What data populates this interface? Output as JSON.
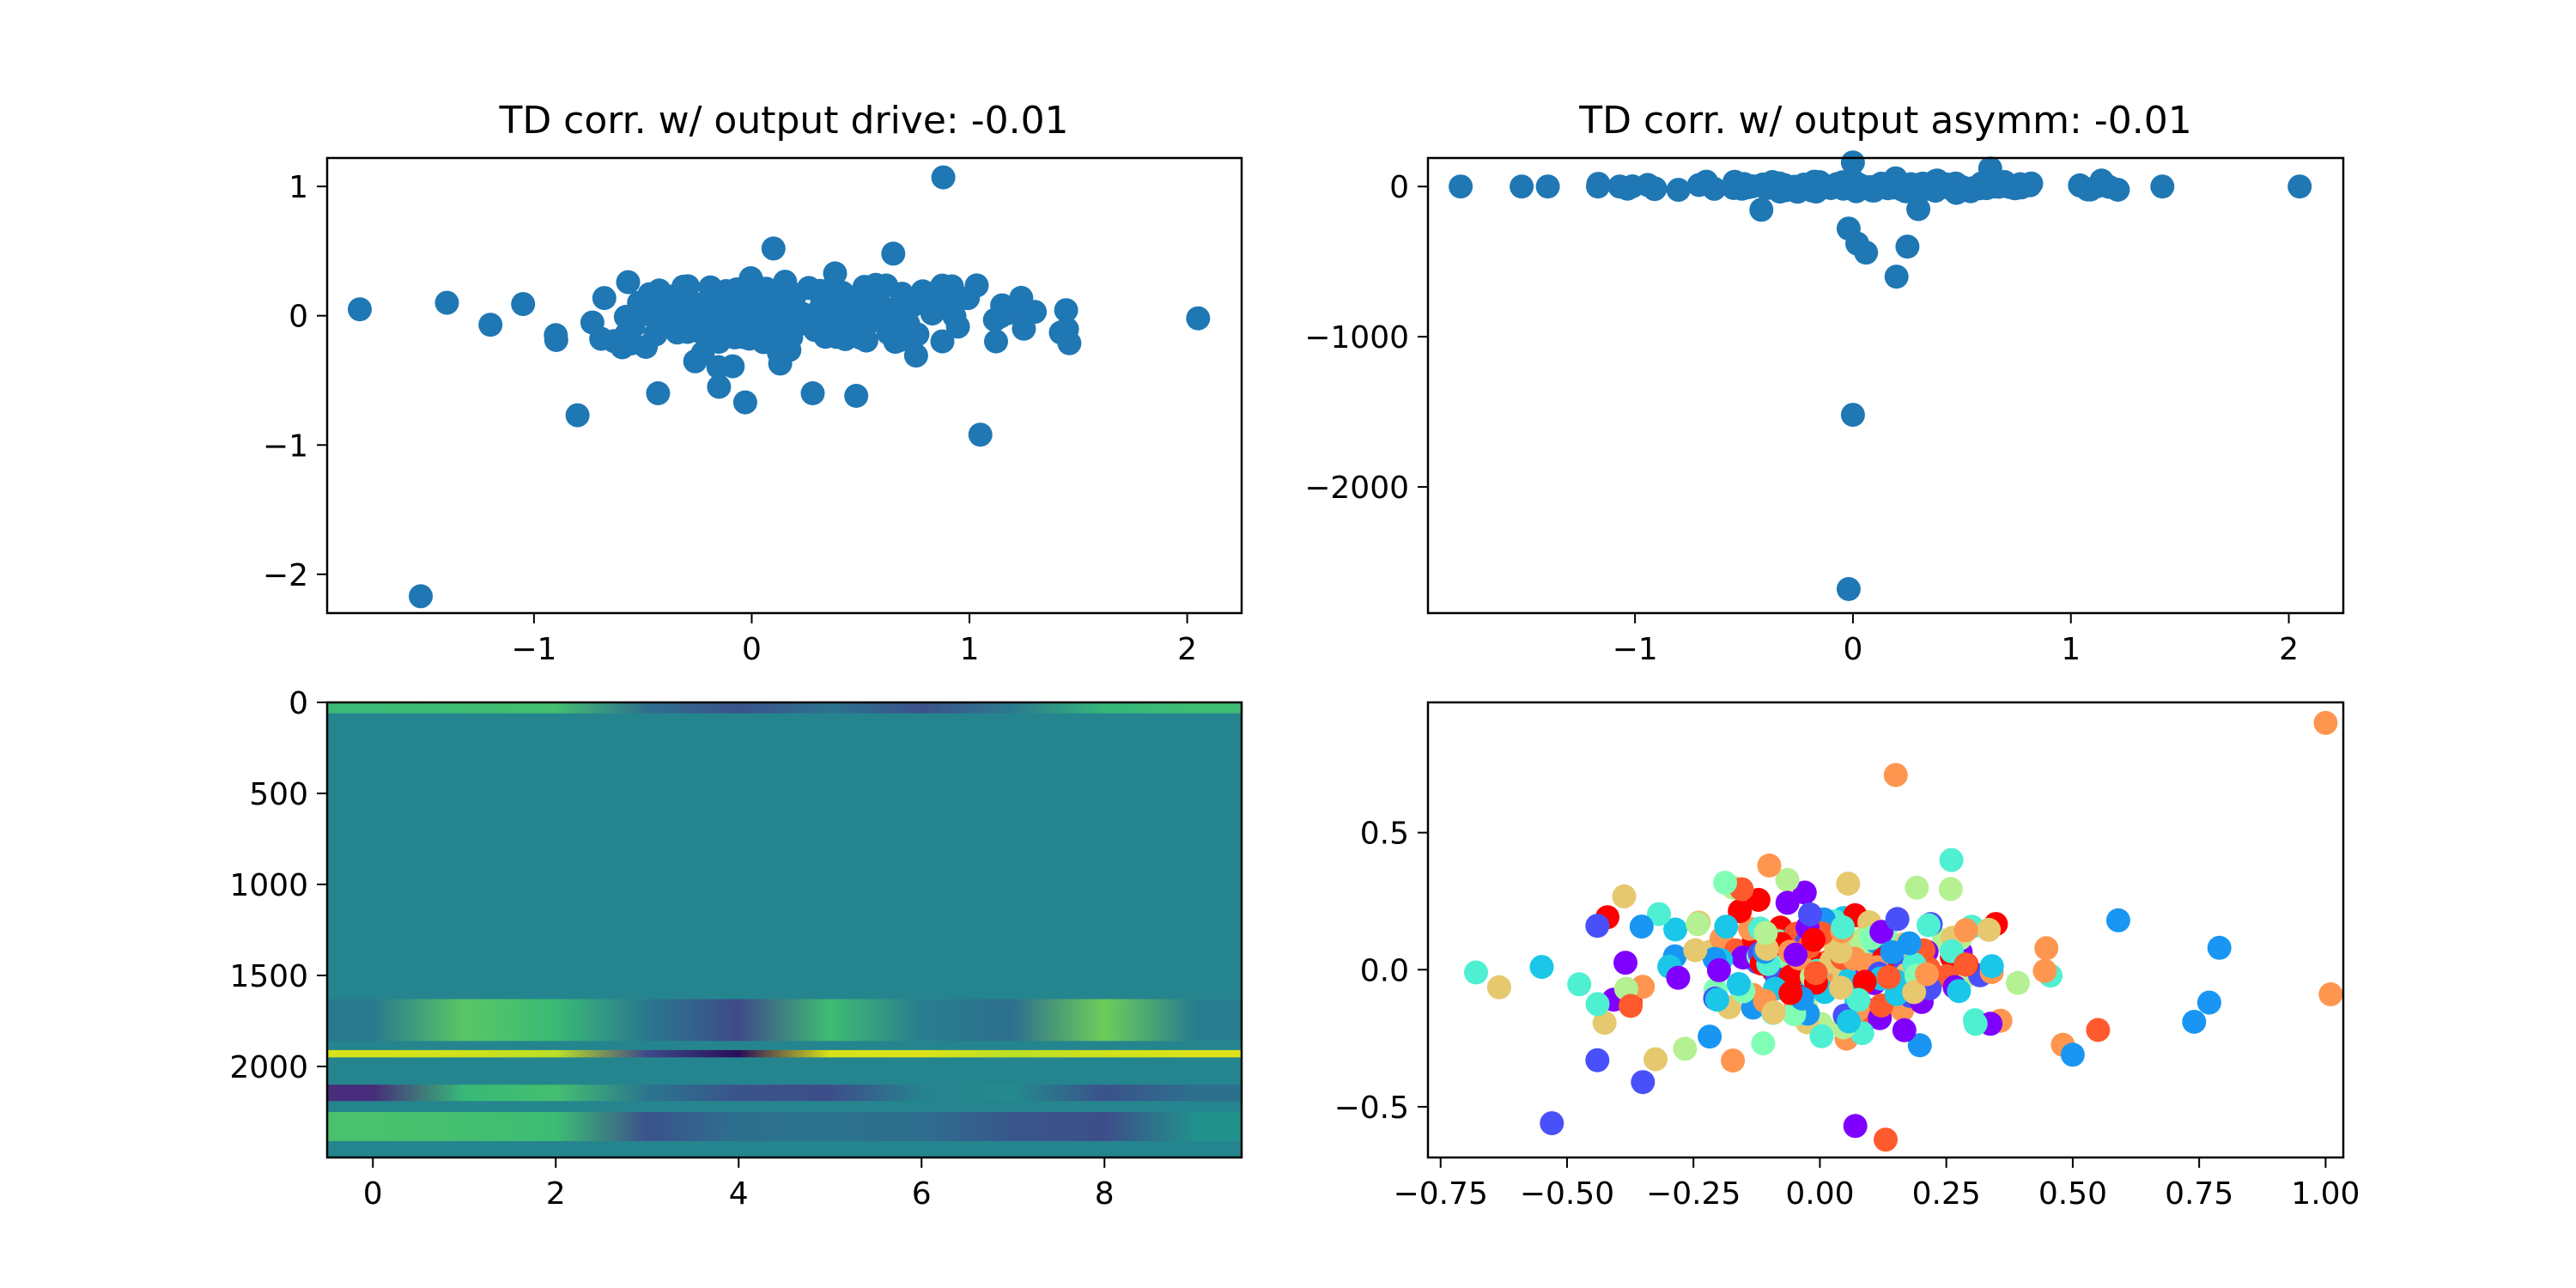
{
  "chart_data": [
    {
      "type": "scatter",
      "title": "TD corr. w/ output drive: -0.01",
      "xlim": [
        -1.95,
        2.25
      ],
      "ylim": [
        -2.3,
        1.22
      ],
      "xticks": [
        -1,
        0,
        1,
        2
      ],
      "yticks": [
        1,
        0,
        -1,
        -2
      ],
      "color": "#1f77b4",
      "outliers": [
        {
          "x": -1.8,
          "y": 0.05
        },
        {
          "x": -1.4,
          "y": 0.1
        },
        {
          "x": -1.2,
          "y": -0.07
        },
        {
          "x": -1.05,
          "y": 0.09
        },
        {
          "x": -0.9,
          "y": -0.15
        },
        {
          "x": -0.8,
          "y": -0.77
        },
        {
          "x": -1.52,
          "y": -2.17
        },
        {
          "x": 0.88,
          "y": 1.07
        },
        {
          "x": 0.65,
          "y": 0.48
        },
        {
          "x": 0.1,
          "y": 0.52
        },
        {
          "x": -0.43,
          "y": -0.6
        },
        {
          "x": -0.15,
          "y": -0.55
        },
        {
          "x": -0.03,
          "y": -0.67
        },
        {
          "x": 0.28,
          "y": -0.6
        },
        {
          "x": 0.48,
          "y": -0.62
        },
        {
          "x": 1.05,
          "y": -0.92
        },
        {
          "x": 1.25,
          "y": -0.1
        },
        {
          "x": 1.3,
          "y": 0.03
        },
        {
          "x": 1.42,
          "y": -0.13
        },
        {
          "x": 2.05,
          "y": -0.02
        },
        {
          "x": 1.15,
          "y": 0.08
        }
      ],
      "cluster": {
        "n": 240,
        "x_center": 0.15,
        "x_spread": 0.42,
        "y_spread": 0.14,
        "seed": 7
      }
    },
    {
      "type": "scatter",
      "title": "TD corr. w/ output asymm: -0.01",
      "xlim": [
        -1.95,
        2.25
      ],
      "ylim": [
        -2840,
        190
      ],
      "xticks": [
        -1,
        0,
        1,
        2
      ],
      "yticks": [
        0,
        -1000,
        -2000
      ],
      "ytick_labels": [
        "0",
        "−1000",
        "−2000"
      ],
      "color": "#1f77b4",
      "outliers": [
        {
          "x": -1.8,
          "y": 0
        },
        {
          "x": -1.52,
          "y": 0
        },
        {
          "x": -1.4,
          "y": 0
        },
        {
          "x": -1.17,
          "y": 0
        },
        {
          "x": -1.07,
          "y": 0
        },
        {
          "x": 1.42,
          "y": 0
        },
        {
          "x": 2.05,
          "y": 0
        },
        {
          "x": 0.0,
          "y": 160
        },
        {
          "x": 0.63,
          "y": 120
        },
        {
          "x": -0.42,
          "y": -155
        },
        {
          "x": -0.02,
          "y": -280
        },
        {
          "x": 0.02,
          "y": -380
        },
        {
          "x": 0.06,
          "y": -440
        },
        {
          "x": 0.2,
          "y": -600
        },
        {
          "x": 0.25,
          "y": -400
        },
        {
          "x": 0.0,
          "y": -1520
        },
        {
          "x": -0.02,
          "y": -2680
        },
        {
          "x": 0.3,
          "y": -150
        }
      ],
      "cluster": {
        "n": 160,
        "x_center": 0.1,
        "x_spread": 0.45,
        "y_spread": 20,
        "seed": 11
      }
    },
    {
      "type": "heatmap",
      "xlim": [
        -0.5,
        9.5
      ],
      "ylim": [
        2500,
        0
      ],
      "xticks": [
        0,
        2,
        4,
        6,
        8
      ],
      "yticks": [
        0,
        500,
        1000,
        1500,
        2000
      ],
      "base_color": "#25858e",
      "bands": [
        {
          "y0": 0,
          "y1": 60,
          "colors": [
            "#3aba76",
            "#3fbc73",
            "#44bf70",
            "#2e6f8e",
            "#3b528b",
            "#2c728e",
            "#3b528b",
            "#2c7a8e",
            "#35b779",
            "#3fbc73"
          ]
        },
        {
          "y0": 1630,
          "y1": 1860,
          "colors": [
            "#2a788e",
            "#58c765",
            "#3aba76",
            "#2a788e",
            "#3e4a89",
            "#3fbc73",
            "#287d8e",
            "#2d708e",
            "#6ccd5a",
            "#287c8e"
          ]
        },
        {
          "y0": 1910,
          "y1": 1950,
          "colors": [
            "#d8e219",
            "#d0e11c",
            "#bddf26",
            "#3e4989",
            "#2a0d5c",
            "#d8e219",
            "#dde318",
            "#bddf26",
            "#d0e11c",
            "#dde318"
          ]
        },
        {
          "y0": 2100,
          "y1": 2190,
          "colors": [
            "#472d7b",
            "#38b977",
            "#44bf70",
            "#2b758e",
            "#3a538b",
            "#3d4e8a",
            "#26828e",
            "#238a8d",
            "#3b528b",
            "#2d708e"
          ]
        },
        {
          "y0": 2250,
          "y1": 2410,
          "colors": [
            "#4ac16d",
            "#44bf70",
            "#3dbc74",
            "#3b528b",
            "#2d708e",
            "#2c728e",
            "#2e6e8e",
            "#39568c",
            "#3d4e8a",
            "#21918c"
          ]
        }
      ]
    },
    {
      "type": "scatter",
      "xlim": [
        -0.775,
        1.035
      ],
      "ylim": [
        -0.685,
        0.975
      ],
      "xticks": [
        -0.75,
        -0.5,
        -0.25,
        0.0,
        0.25,
        0.5,
        0.75,
        1.0
      ],
      "xtick_labels": [
        "−0.75",
        "−0.50",
        "−0.25",
        "0.00",
        "0.25",
        "0.50",
        "0.75",
        "1.00"
      ],
      "yticks": [
        0.5,
        0.0,
        -0.5
      ],
      "ytick_labels": [
        "0.5",
        "0.0",
        "−0.5"
      ],
      "palette": [
        "#8000ff",
        "#4a50f9",
        "#1996f3",
        "#1ac7e8",
        "#4ef0d1",
        "#80ffb4",
        "#b5f093",
        "#e6c86e",
        "#ff9650",
        "#ff5a2e",
        "#ff0000"
      ],
      "outliers": [
        {
          "x": 1.0,
          "y": 0.9,
          "color": "#ff9650"
        },
        {
          "x": 1.01,
          "y": -0.09,
          "color": "#ff9650"
        },
        {
          "x": 0.15,
          "y": 0.71,
          "color": "#ff9650"
        },
        {
          "x": -0.68,
          "y": -0.01,
          "color": "#4ef0d1"
        },
        {
          "x": -0.55,
          "y": 0.01,
          "color": "#1ac7e8"
        },
        {
          "x": -0.53,
          "y": -0.56,
          "color": "#4a50f9"
        },
        {
          "x": -0.44,
          "y": 0.16,
          "color": "#4a50f9"
        },
        {
          "x": 0.79,
          "y": 0.08,
          "color": "#1996f3"
        },
        {
          "x": 0.77,
          "y": -0.12,
          "color": "#1996f3"
        },
        {
          "x": 0.74,
          "y": -0.19,
          "color": "#1996f3"
        },
        {
          "x": 0.59,
          "y": 0.18,
          "color": "#1996f3"
        },
        {
          "x": 0.07,
          "y": -0.57,
          "color": "#8000ff"
        },
        {
          "x": 0.13,
          "y": -0.62,
          "color": "#ff5a2e"
        },
        {
          "x": 0.5,
          "y": -0.31,
          "color": "#1996f3"
        },
        {
          "x": 0.55,
          "y": -0.22,
          "color": "#ff5a2e"
        },
        {
          "x": -0.1,
          "y": 0.38,
          "color": "#ff9650"
        },
        {
          "x": 0.26,
          "y": 0.4,
          "color": "#4ef0d1"
        },
        {
          "x": -0.35,
          "y": -0.41,
          "color": "#4a50f9"
        },
        {
          "x": -0.44,
          "y": -0.33,
          "color": "#4a50f9"
        }
      ],
      "cluster": {
        "n": 230,
        "x_center": 0.02,
        "x_spread": 0.18,
        "y_spread": 0.13,
        "seed": 23
      }
    }
  ]
}
